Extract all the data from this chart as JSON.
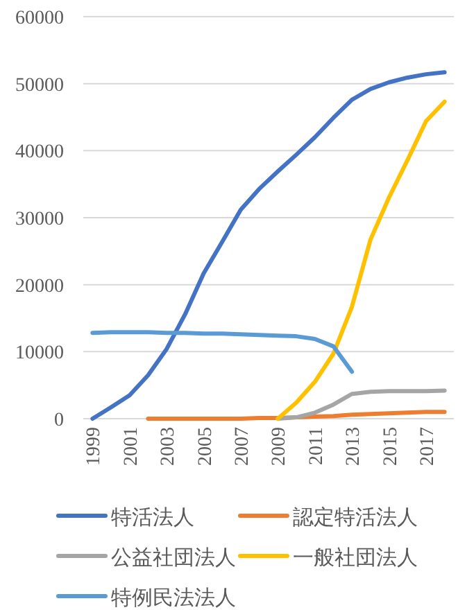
{
  "chart_data": {
    "type": "line",
    "categories": [
      "1999",
      null,
      "2001",
      null,
      "2003",
      null,
      "2005",
      null,
      "2007",
      null,
      "2009",
      null,
      "2011",
      null,
      "2013",
      null,
      "2015",
      null,
      "2017",
      null
    ],
    "series": [
      {
        "name": "特活法人",
        "color": "#4472c4",
        "values": [
          0,
          1700,
          3500,
          6500,
          10400,
          15600,
          21700,
          26400,
          31200,
          34300,
          36900,
          39400,
          42000,
          44900,
          47600,
          49200,
          50200,
          50900,
          51400,
          51700
        ]
      },
      {
        "name": "認定特活法人",
        "color": "#ed7d31",
        "values": [
          null,
          null,
          null,
          0,
          0,
          0,
          0,
          0,
          0,
          100,
          100,
          200,
          300,
          400,
          600,
          700,
          800,
          900,
          1000,
          1000
        ]
      },
      {
        "name": "公益社団法人",
        "color": "#a5a5a5",
        "values": [
          null,
          null,
          null,
          null,
          null,
          null,
          null,
          null,
          null,
          null,
          0,
          200,
          900,
          2100,
          3700,
          4000,
          4100,
          4100,
          4100,
          4200
        ]
      },
      {
        "name": "一般社団法人",
        "color": "#ffc000",
        "values": [
          null,
          null,
          null,
          null,
          null,
          null,
          null,
          null,
          null,
          null,
          0,
          2400,
          5500,
          9700,
          16700,
          26700,
          33000,
          38600,
          44400,
          47300
        ]
      },
      {
        "name": "特例民法法人",
        "color": "#5b9bd5",
        "values": [
          12800,
          12900,
          12900,
          12900,
          12800,
          12800,
          12700,
          12700,
          12600,
          12500,
          12400,
          12300,
          11900,
          10800,
          7000,
          null,
          null,
          null,
          null,
          null
        ]
      }
    ],
    "ylim": [
      0,
      60000
    ],
    "yticks": [
      0,
      10000,
      20000,
      30000,
      40000,
      50000,
      60000
    ],
    "grid": "y",
    "legend": "bottom"
  }
}
